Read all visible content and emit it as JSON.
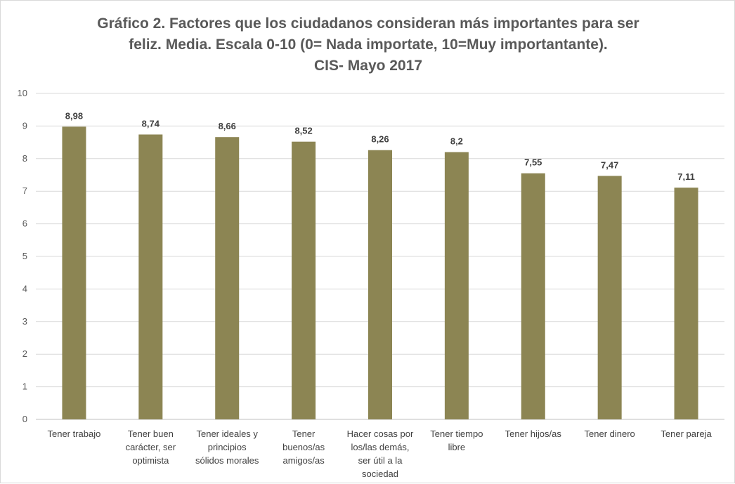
{
  "chart_data": {
    "type": "bar",
    "title_lines": [
      "Gráfico 2. Factores que los ciudadanos consideran más importantes para ser",
      "feliz.  Media. Escala 0-10 (0= Nada importate, 10=Muy importantante).",
      "CIS- Mayo 2017"
    ],
    "categories": [
      [
        "Tener trabajo"
      ],
      [
        "Tener buen",
        "carácter, ser",
        "optimista"
      ],
      [
        "Tener ideales y",
        "principios",
        "sólidos morales"
      ],
      [
        "Tener",
        "buenos/as",
        "amigos/as"
      ],
      [
        "Hacer cosas por",
        "los/las demás,",
        "ser útil a la",
        "sociedad"
      ],
      [
        "Tener tiempo",
        "libre"
      ],
      [
        "Tener hijos/as"
      ],
      [
        "Tener dinero"
      ],
      [
        "Tener pareja"
      ]
    ],
    "values": [
      8.98,
      8.74,
      8.66,
      8.52,
      8.26,
      8.2,
      7.55,
      7.47,
      7.11
    ],
    "data_labels": [
      "8,98",
      "8,74",
      "8,66",
      "8,52",
      "8,26",
      "8,2",
      "7,55",
      "7,47",
      "7,11"
    ],
    "ylim": [
      0,
      10
    ],
    "yticks": [
      "0",
      "1",
      "2",
      "3",
      "4",
      "5",
      "6",
      "7",
      "8",
      "9",
      "10"
    ],
    "grid": true,
    "legend": "none",
    "colors": {
      "bar": "#8c8553",
      "grid": "#d9d9d9",
      "axis": "#bfbfbf"
    }
  }
}
